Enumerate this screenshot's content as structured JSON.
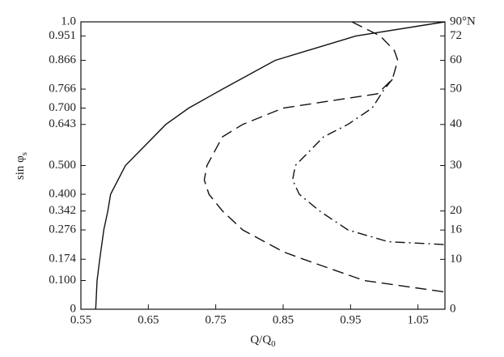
{
  "chart_data": {
    "type": "line",
    "xlabel": {
      "text": "Q/Q",
      "sub": "0"
    },
    "ylabel": {
      "text": "sin φ",
      "sub": "s"
    },
    "xlim": [
      0.55,
      1.09
    ],
    "xticks": [
      0.55,
      0.65,
      0.75,
      0.85,
      0.95,
      1.05
    ],
    "ylim": [
      0,
      1
    ],
    "yticks": [
      0,
      {
        "value": 0.1,
        "label": "0.100"
      },
      0.174,
      0.276,
      0.342,
      {
        "value": 0.4,
        "label": "0.400"
      },
      {
        "value": 0.5,
        "label": "0.500"
      },
      0.643,
      {
        "value": 0.7,
        "label": "0.700"
      },
      0.766,
      0.866,
      0.951,
      {
        "value": 1,
        "label": "1.0"
      }
    ],
    "y2scale": "sine",
    "y2lim": [
      0,
      90
    ],
    "y2ticks": [
      0,
      10,
      16,
      20,
      30,
      40,
      50,
      60,
      72,
      {
        "value": 90,
        "label": "90°N"
      }
    ],
    "series": [
      {
        "color": "#111",
        "dash": "solid",
        "x": [
          0.572,
          0.574,
          0.578,
          0.584,
          0.59,
          0.594,
          0.616,
          0.676,
          0.71,
          0.76,
          0.838,
          0.958,
          1.09
        ],
        "values": [
          0,
          0.1,
          0.174,
          0.276,
          0.342,
          0.4,
          0.5,
          0.643,
          0.7,
          0.766,
          0.866,
          0.951,
          1.0
        ]
      },
      {
        "color": "#111",
        "dash": "dashed",
        "x": [
          0.952,
          0.994,
          1.015,
          1.02,
          1.012,
          0.99,
          0.85,
          0.79,
          0.76,
          0.737,
          0.733,
          0.74,
          0.76,
          0.79,
          0.85,
          0.88,
          0.97,
          1.09
        ],
        "values": [
          1.0,
          0.951,
          0.9,
          0.866,
          0.8,
          0.75,
          0.7,
          0.643,
          0.6,
          0.5,
          0.45,
          0.4,
          0.342,
          0.276,
          0.2,
          0.174,
          0.1,
          0.06
        ]
      },
      {
        "color": "#111",
        "dash": "dashdot",
        "x": [
          1.012,
          1.0,
          0.982,
          0.946,
          0.91,
          0.868,
          0.864,
          0.874,
          0.904,
          0.946,
          1.006,
          1.09
        ],
        "values": [
          0.8,
          0.766,
          0.7,
          0.643,
          0.6,
          0.5,
          0.45,
          0.4,
          0.342,
          0.276,
          0.235,
          0.225
        ]
      }
    ]
  }
}
